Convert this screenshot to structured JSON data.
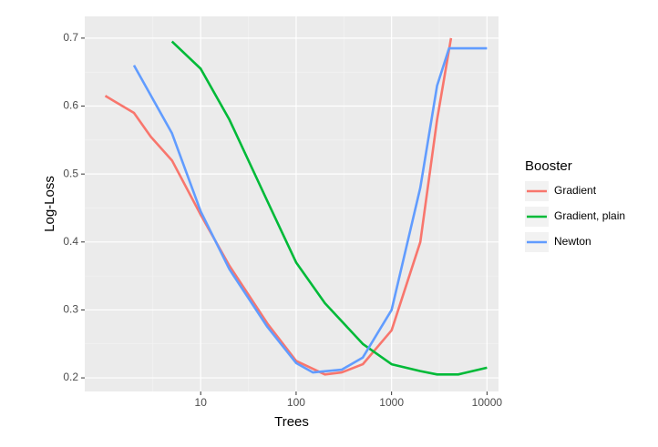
{
  "chart_data": {
    "type": "line",
    "x_label": "Trees",
    "y_label": "Log-Loss",
    "legend_title": "Booster",
    "log_x": true,
    "grid": true,
    "xlim": [
      0.61,
      13200
    ],
    "xticks": [
      10,
      100,
      1000,
      10000
    ],
    "ylim": [
      0.18,
      0.732
    ],
    "yticks": [
      0.2,
      0.3,
      0.4,
      0.5,
      0.6,
      0.7
    ],
    "series": [
      {
        "name": "Gradient",
        "color": "#F8766D",
        "x": [
          1,
          2,
          3,
          5,
          10,
          20,
          50,
          100,
          200,
          300,
          500,
          1000,
          2000,
          3000,
          4200
        ],
        "values": [
          0.615,
          0.59,
          0.555,
          0.52,
          0.44,
          0.365,
          0.28,
          0.225,
          0.205,
          0.208,
          0.22,
          0.27,
          0.4,
          0.58,
          0.7
        ]
      },
      {
        "name": "Gradient, plain",
        "color": "#00BA38",
        "x": [
          5,
          10,
          20,
          50,
          100,
          200,
          500,
          1000,
          2000,
          3000,
          5000,
          10000
        ],
        "values": [
          0.695,
          0.655,
          0.58,
          0.46,
          0.37,
          0.31,
          0.25,
          0.22,
          0.21,
          0.205,
          0.205,
          0.215
        ]
      },
      {
        "name": "Newton",
        "color": "#619CFF",
        "x": [
          2,
          5,
          10,
          20,
          50,
          100,
          150,
          300,
          500,
          1000,
          2000,
          3000,
          4000,
          10000
        ],
        "values": [
          0.66,
          0.56,
          0.445,
          0.36,
          0.275,
          0.222,
          0.208,
          0.212,
          0.23,
          0.3,
          0.48,
          0.63,
          0.685,
          0.685
        ]
      }
    ]
  }
}
